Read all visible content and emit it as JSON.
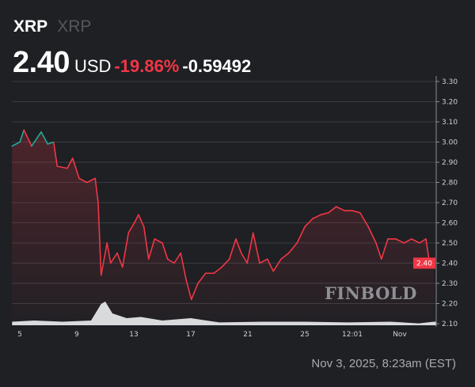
{
  "header": {
    "symbol": "XRP",
    "name": "XRP"
  },
  "quote": {
    "price": "2.40",
    "currency": "USD",
    "change_percent": "-19.86%",
    "change_value": "-0.59492"
  },
  "footer": {
    "timestamp": "Nov 3, 2025, 8:23am (EST)"
  },
  "watermark": "FINBOLD",
  "colors": {
    "background": "#1e2024",
    "down": "#f23645",
    "up": "#22ab94",
    "volume": "#d9dadc"
  },
  "chart_data": {
    "type": "area",
    "title": "",
    "ylim": [
      2.1,
      3.3
    ],
    "y_ticks": [
      "3.30",
      "3.20",
      "3.10",
      "3.00",
      "2.90",
      "2.80",
      "2.70",
      "2.60",
      "2.50",
      "2.40",
      "2.30",
      "2.20",
      "2.10"
    ],
    "x_ticks": [
      {
        "label": "5",
        "t": "2025-10-05T00:00"
      },
      {
        "label": "9",
        "t": "2025-10-09T00:00"
      },
      {
        "label": "13",
        "t": "2025-10-13T00:00"
      },
      {
        "label": "17",
        "t": "2025-10-17T00:00"
      },
      {
        "label": "21",
        "t": "2025-10-21T00:00"
      },
      {
        "label": "25",
        "t": "2025-10-25T00:00"
      },
      {
        "label": "12:01",
        "t": "2025-10-28T08:00"
      },
      {
        "label": "Nov",
        "t": "2025-10-31T16:00"
      }
    ],
    "grid": true,
    "last_price_label": "2.40",
    "series": [
      {
        "points": [
          [
            "2025-10-04T11:00",
            2.98
          ],
          [
            "2025-10-05T00:00",
            3.0
          ],
          [
            "2025-10-05T07:00",
            3.06
          ],
          [
            "2025-10-05T20:00",
            2.98
          ],
          [
            "2025-10-06T12:00",
            3.05
          ],
          [
            "2025-10-06T23:00",
            2.99
          ],
          [
            "2025-10-07T09:00",
            3.0
          ],
          [
            "2025-10-07T15:00",
            2.88
          ],
          [
            "2025-10-08T08:00",
            2.87
          ],
          [
            "2025-10-08T17:00",
            2.92
          ],
          [
            "2025-10-09T04:00",
            2.82
          ],
          [
            "2025-10-09T17:00",
            2.8
          ],
          [
            "2025-10-10T07:00",
            2.82
          ],
          [
            "2025-10-10T12:00",
            2.7
          ],
          [
            "2025-10-10T17:00",
            2.34
          ],
          [
            "2025-10-11T03:00",
            2.5
          ],
          [
            "2025-10-11T09:00",
            2.4
          ],
          [
            "2025-10-11T20:00",
            2.45
          ],
          [
            "2025-10-12T05:00",
            2.38
          ],
          [
            "2025-10-12T15:00",
            2.55
          ],
          [
            "2025-10-13T01:00",
            2.6
          ],
          [
            "2025-10-13T08:00",
            2.64
          ],
          [
            "2025-10-13T17:00",
            2.58
          ],
          [
            "2025-10-14T01:00",
            2.42
          ],
          [
            "2025-10-14T11:00",
            2.52
          ],
          [
            "2025-10-15T00:00",
            2.5
          ],
          [
            "2025-10-15T09:00",
            2.42
          ],
          [
            "2025-10-15T20:00",
            2.4
          ],
          [
            "2025-10-16T07:00",
            2.45
          ],
          [
            "2025-10-16T16:00",
            2.32
          ],
          [
            "2025-10-17T01:00",
            2.22
          ],
          [
            "2025-10-17T12:00",
            2.3
          ],
          [
            "2025-10-18T01:00",
            2.35
          ],
          [
            "2025-10-18T15:00",
            2.35
          ],
          [
            "2025-10-19T04:00",
            2.38
          ],
          [
            "2025-10-19T17:00",
            2.42
          ],
          [
            "2025-10-20T04:00",
            2.52
          ],
          [
            "2025-10-20T13:00",
            2.45
          ],
          [
            "2025-10-20T23:00",
            2.4
          ],
          [
            "2025-10-21T09:00",
            2.55
          ],
          [
            "2025-10-21T20:00",
            2.4
          ],
          [
            "2025-10-22T09:00",
            2.42
          ],
          [
            "2025-10-22T19:00",
            2.36
          ],
          [
            "2025-10-23T08:00",
            2.42
          ],
          [
            "2025-10-23T21:00",
            2.45
          ],
          [
            "2025-10-24T11:00",
            2.5
          ],
          [
            "2025-10-25T00:00",
            2.58
          ],
          [
            "2025-10-25T13:00",
            2.62
          ],
          [
            "2025-10-26T03:00",
            2.64
          ],
          [
            "2025-10-26T16:00",
            2.65
          ],
          [
            "2025-10-27T05:00",
            2.68
          ],
          [
            "2025-10-27T19:00",
            2.66
          ],
          [
            "2025-10-28T08:00",
            2.66
          ],
          [
            "2025-10-28T21:00",
            2.65
          ],
          [
            "2025-10-29T11:00",
            2.58
          ],
          [
            "2025-10-30T00:00",
            2.5
          ],
          [
            "2025-10-30T09:00",
            2.42
          ],
          [
            "2025-10-30T20:00",
            2.52
          ],
          [
            "2025-10-31T09:00",
            2.52
          ],
          [
            "2025-10-31T23:00",
            2.5
          ],
          [
            "2025-11-01T12:00",
            2.52
          ],
          [
            "2025-11-02T01:00",
            2.5
          ],
          [
            "2025-11-02T12:00",
            2.52
          ],
          [
            "2025-11-02T17:00",
            2.42
          ],
          [
            "2025-11-03T01:00",
            2.4
          ]
        ]
      }
    ],
    "volume_relative": [
      [
        "2025-10-04T11:00",
        0.15
      ],
      [
        "2025-10-06T00:00",
        0.2
      ],
      [
        "2025-10-08T00:00",
        0.15
      ],
      [
        "2025-10-10T00:00",
        0.2
      ],
      [
        "2025-10-10T17:00",
        0.9
      ],
      [
        "2025-10-11T00:00",
        1.0
      ],
      [
        "2025-10-11T12:00",
        0.5
      ],
      [
        "2025-10-12T12:00",
        0.3
      ],
      [
        "2025-10-13T12:00",
        0.35
      ],
      [
        "2025-10-15T00:00",
        0.2
      ],
      [
        "2025-10-17T00:00",
        0.3
      ],
      [
        "2025-10-19T00:00",
        0.12
      ],
      [
        "2025-10-22T00:00",
        0.15
      ],
      [
        "2025-10-25T00:00",
        0.15
      ],
      [
        "2025-10-28T00:00",
        0.12
      ],
      [
        "2025-10-31T00:00",
        0.15
      ],
      [
        "2025-11-02T00:00",
        0.08
      ],
      [
        "2025-11-03T01:00",
        0.15
      ]
    ]
  }
}
